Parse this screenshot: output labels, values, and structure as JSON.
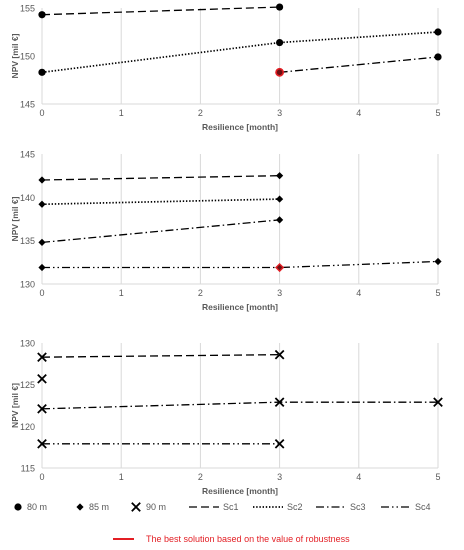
{
  "chart_data": [
    {
      "type": "line",
      "xlabel": "Resilience [month]",
      "ylabel": "NPV [mil €]",
      "xlim": [
        0,
        5
      ],
      "ylim": [
        145,
        155
      ],
      "xticks": [
        "0",
        "1",
        "2",
        "3",
        "4",
        "5"
      ],
      "yticks": [
        "145",
        "150",
        "155"
      ],
      "grid": "vertical",
      "series": [
        {
          "name": "Sc1",
          "marker": "circle",
          "x": [
            0,
            3
          ],
          "y": [
            154.3,
            155.1
          ]
        },
        {
          "name": "Sc2",
          "marker": "circle",
          "x": [
            0,
            3,
            5
          ],
          "y": [
            148.3,
            151.4,
            152.5
          ]
        },
        {
          "name": "Sc3",
          "marker": "circle",
          "x": [
            3,
            5
          ],
          "y": [
            148.3,
            149.9
          ],
          "highlight": [
            true,
            false
          ]
        }
      ]
    },
    {
      "type": "line",
      "xlabel": "Resilience [month]",
      "ylabel": "NPV [mil €]",
      "xlim": [
        0,
        5
      ],
      "ylim": [
        130,
        145
      ],
      "xticks": [
        "0",
        "1",
        "2",
        "3",
        "4",
        "5"
      ],
      "yticks": [
        "130",
        "135",
        "140",
        "145"
      ],
      "grid": "vertical",
      "series": [
        {
          "name": "Sc1",
          "marker": "diamond",
          "x": [
            0,
            3
          ],
          "y": [
            142.0,
            142.5
          ]
        },
        {
          "name": "Sc2",
          "marker": "diamond",
          "x": [
            0,
            3
          ],
          "y": [
            139.2,
            139.8
          ]
        },
        {
          "name": "Sc3",
          "marker": "diamond",
          "x": [
            0,
            3
          ],
          "y": [
            134.8,
            137.4
          ]
        },
        {
          "name": "Sc4",
          "marker": "diamond",
          "x": [
            0,
            3,
            5
          ],
          "y": [
            131.9,
            131.9,
            132.6
          ],
          "highlight": [
            false,
            true,
            false
          ]
        }
      ]
    },
    {
      "type": "line",
      "xlabel": "Resilience [month]",
      "ylabel": "NPV [mil €]",
      "xlim": [
        0,
        5
      ],
      "ylim": [
        115,
        130
      ],
      "xticks": [
        "0",
        "1",
        "2",
        "3",
        "4",
        "5"
      ],
      "yticks": [
        "115",
        "120",
        "125",
        "130"
      ],
      "grid": "vertical",
      "series": [
        {
          "name": "Sc1",
          "marker": "x",
          "x": [
            0,
            3
          ],
          "y": [
            128.3,
            128.6
          ]
        },
        {
          "name": "",
          "marker": "x",
          "x": [
            0
          ],
          "y": [
            125.7
          ],
          "line": false
        },
        {
          "name": "Sc3",
          "marker": "x",
          "x": [
            0,
            3,
            5
          ],
          "y": [
            122.1,
            122.9,
            122.9
          ]
        },
        {
          "name": "Sc4",
          "marker": "x",
          "x": [
            0,
            3
          ],
          "y": [
            117.9,
            117.9
          ]
        }
      ]
    }
  ],
  "legend": {
    "markers": [
      {
        "label": "80 m",
        "marker": "circle"
      },
      {
        "label": "85 m",
        "marker": "diamond"
      },
      {
        "label": "90 m",
        "marker": "x"
      }
    ],
    "lines": [
      {
        "label": "Sc1",
        "dash": "dash"
      },
      {
        "label": "Sc2",
        "dash": "dot"
      },
      {
        "label": "Sc3",
        "dash": "dashdot"
      },
      {
        "label": "Sc4",
        "dash": "dashdotdot"
      }
    ],
    "highlight": {
      "label": "The best solution based on the value of robustness",
      "color": "#e31e24"
    }
  },
  "colors": {
    "ink": "#000000",
    "axis_text": "#595959",
    "grid": "#d9d9d9",
    "highlight": "#e31e24"
  }
}
